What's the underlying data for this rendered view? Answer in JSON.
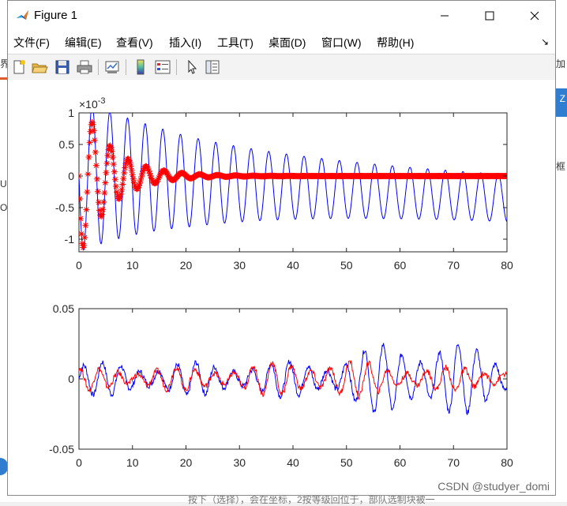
{
  "background": {
    "left_fragments": [
      "界",
      "U",
      "O"
    ],
    "right_fragments": [
      "加",
      "Z",
      "框"
    ],
    "bottom_text": "按下（选择），会在坐标，2按等级回位于，部队选制块被一",
    "watermark": "CSDN @studyer_domi"
  },
  "window": {
    "title": "Figure 1",
    "controls": {
      "minimize": "minimize-icon",
      "maximize": "maximize-icon",
      "close": "close-icon"
    }
  },
  "menu": {
    "items": [
      "文件(F)",
      "编辑(E)",
      "查看(V)",
      "插入(I)",
      "工具(T)",
      "桌面(D)",
      "窗口(W)",
      "帮助(H)"
    ],
    "overflow_icon": "dock-arrow-icon"
  },
  "toolbar": {
    "icons": [
      "new-figure-icon",
      "open-file-icon",
      "save-icon",
      "print-icon",
      "link-plot-icon",
      "colorbar-icon",
      "legend-icon",
      "pointer-icon",
      "property-editor-icon"
    ]
  },
  "colors": {
    "series_blue": "#0000ff",
    "series_red": "#ff0000",
    "axis": "#262626"
  },
  "chart_data": [
    {
      "type": "line",
      "scale_exponent_label": "×10",
      "scale_exponent": "-3",
      "xlim": [
        0,
        80
      ],
      "ylim": [
        -1.2,
        1
      ],
      "xticks": [
        "0",
        "10",
        "20",
        "30",
        "40",
        "50",
        "60",
        "70",
        "80"
      ],
      "yticks": [
        "1",
        "0.5",
        "0",
        "-0.5",
        "-1"
      ],
      "ytick_values": [
        1,
        0.5,
        0,
        -0.5,
        -1
      ],
      "series": [
        {
          "style": "line",
          "color": "#0000ff",
          "model": {
            "amplitude": 1.2,
            "decay": 0.04,
            "floor": 0.28,
            "period": 3.3,
            "offset_start": 0,
            "offset_end": -0.35,
            "x_start": 0,
            "x_end": 80
          }
        },
        {
          "style": "markers-asterisk",
          "color": "#ff0000",
          "model": {
            "amplitude": 1.3,
            "decay": 0.17,
            "period": 3.35,
            "x_start": 0,
            "x_end": 80
          }
        }
      ]
    },
    {
      "type": "line",
      "xlim": [
        0,
        80
      ],
      "ylim": [
        -0.05,
        0.05
      ],
      "xticks": [
        "0",
        "10",
        "20",
        "30",
        "40",
        "50",
        "60",
        "70",
        "80"
      ],
      "yticks": [
        "0.05",
        "0",
        "-0.05"
      ],
      "ytick_values": [
        0.05,
        0,
        -0.05
      ],
      "series": [
        {
          "style": "line",
          "color": "#0000ff",
          "model": {
            "amplitude_base": 0.012,
            "amplitude_peak": 0.03,
            "peak_at": 64,
            "period": 3.5,
            "x_start": 0,
            "x_end": 80
          }
        },
        {
          "style": "line",
          "color": "#ff0000",
          "model": {
            "amplitude_base": 0.008,
            "amplitude_peak": 0.014,
            "peak_at": 45,
            "period": 3.6,
            "x_start": 0,
            "x_end": 80
          }
        }
      ]
    }
  ]
}
